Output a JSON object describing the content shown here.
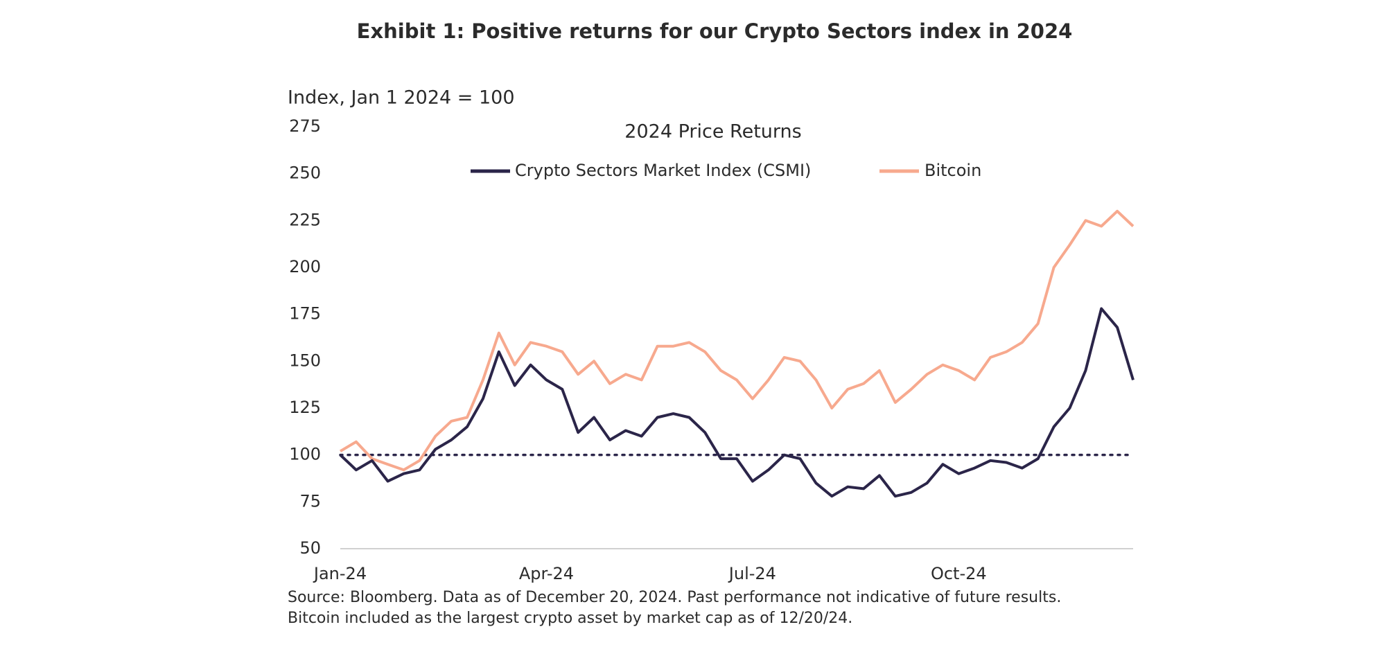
{
  "chart_data": {
    "type": "line",
    "title": "Exhibit 1: Positive returns for our Crypto Sectors index in 2024",
    "subtitle": "2024 Price Returns",
    "ylabel": "Index, Jan 1 2024 = 100",
    "notes": [
      "Source: Bloomberg. Data as of December 20, 2024. Past performance not indicative of future results.",
      "Bitcoin included as the largest crypto asset by market cap as of 12/20/24."
    ],
    "categories": [
      "Jan-24",
      null,
      null,
      null,
      null,
      null,
      null,
      null,
      null,
      null,
      null,
      null,
      null,
      "Apr-24",
      null,
      null,
      null,
      null,
      null,
      null,
      null,
      null,
      null,
      null,
      null,
      null,
      "Jul-24",
      null,
      null,
      null,
      null,
      null,
      null,
      null,
      null,
      null,
      null,
      null,
      null,
      "Oct-24",
      null,
      null,
      null,
      null,
      null,
      null,
      null,
      null,
      null,
      null,
      null
    ],
    "series": [
      {
        "name": "Crypto Sectors Market Index (CSMI)",
        "color": "#2b2549",
        "values": [
          100,
          92,
          97,
          86,
          90,
          92,
          103,
          108,
          115,
          130,
          155,
          137,
          148,
          140,
          135,
          112,
          120,
          108,
          113,
          110,
          120,
          122,
          120,
          112,
          98,
          98,
          86,
          92,
          100,
          98,
          85,
          78,
          83,
          82,
          89,
          78,
          80,
          85,
          95,
          90,
          93,
          97,
          96,
          93,
          98,
          115,
          125,
          145,
          178,
          168,
          140
        ]
      },
      {
        "name": "Bitcoin",
        "color": "#f7a98e",
        "values": [
          102,
          107,
          98,
          95,
          92,
          97,
          110,
          118,
          120,
          140,
          165,
          148,
          160,
          158,
          155,
          143,
          150,
          138,
          143,
          140,
          158,
          158,
          160,
          155,
          145,
          140,
          130,
          140,
          152,
          150,
          140,
          125,
          135,
          138,
          145,
          128,
          135,
          143,
          148,
          145,
          140,
          152,
          155,
          160,
          170,
          200,
          212,
          225,
          222,
          230,
          222
        ]
      }
    ],
    "reference_line": 100,
    "ylim": [
      50,
      275
    ],
    "yticks": [
      50,
      75,
      100,
      125,
      150,
      175,
      200,
      225,
      250,
      275
    ]
  }
}
